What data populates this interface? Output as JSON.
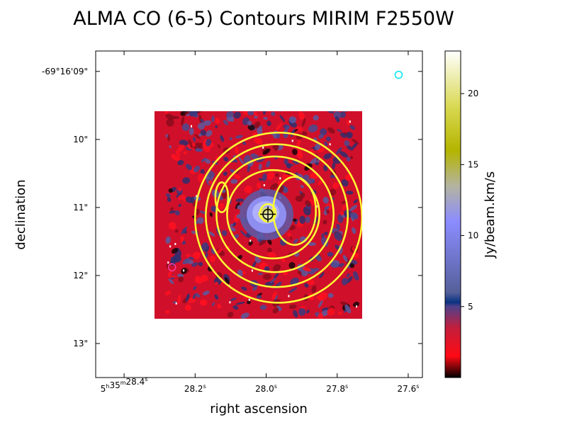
{
  "chart_data": {
    "type": "heatmap",
    "title": "ALMA CO (6-5) Contours MIRIM F2550W",
    "xlabel": "right ascension",
    "ylabel": "declination",
    "x_ticks": [
      {
        "h": "5",
        "m": "35",
        "s": "28.4",
        "value_s": 28.4
      },
      {
        "h": "",
        "m": "",
        "s": "28.2",
        "value_s": 28.2
      },
      {
        "h": "",
        "m": "",
        "s": "28.0",
        "value_s": 28.0
      },
      {
        "h": "",
        "m": "",
        "s": "27.8",
        "value_s": 27.8
      },
      {
        "h": "",
        "m": "",
        "s": "27.6",
        "value_s": 27.6
      }
    ],
    "y_ticks": [
      {
        "label": "-69°16'09\"",
        "value_arcsec": 9
      },
      {
        "label": "10\"",
        "value_arcsec": 10
      },
      {
        "label": "11\"",
        "value_arcsec": 11
      },
      {
        "label": "12\"",
        "value_arcsec": 12
      },
      {
        "label": "13\"",
        "value_arcsec": 13
      }
    ],
    "colorbar": {
      "label": "Jy/beam.km/s",
      "min": 0,
      "max": 23,
      "ticks": [
        {
          "label": "5",
          "value": 5
        },
        {
          "label": "10",
          "value": 10
        },
        {
          "label": "15",
          "value": 15
        },
        {
          "label": "20",
          "value": 20
        }
      ],
      "colors": [
        {
          "v": 0,
          "c": "#000000"
        },
        {
          "v": 1.5,
          "c": "#ff0a14"
        },
        {
          "v": 3.5,
          "c": "#c31e3c"
        },
        {
          "v": 5,
          "c": "#50418a"
        },
        {
          "v": 5.3,
          "c": "#0a3282"
        },
        {
          "v": 6,
          "c": "#55609a"
        },
        {
          "v": 11,
          "c": "#8c8cff"
        },
        {
          "v": 13.5,
          "c": "#b4b4a0"
        },
        {
          "v": 16,
          "c": "#b4b400"
        },
        {
          "v": 19,
          "c": "#d8d850"
        },
        {
          "v": 23,
          "c": "#ffffff"
        }
      ]
    },
    "image_extent": {
      "x_s": [
        28.28,
        27.74
      ],
      "y_arcsec": [
        9.55,
        12.6
      ]
    },
    "axis_range": {
      "x_s": [
        28.48,
        27.56
      ],
      "y_arcsec": [
        8.7,
        13.5
      ]
    },
    "contour_color": "#ffff33",
    "contours": [
      {
        "cx_s": 27.965,
        "cy_arcsec": 11.15,
        "rx_s": 0.235,
        "ry_arcsec": 1.25
      },
      {
        "cx_s": 27.97,
        "cy_arcsec": 11.12,
        "rx_s": 0.2,
        "ry_arcsec": 1.05
      },
      {
        "cx_s": 27.975,
        "cy_arcsec": 11.1,
        "rx_s": 0.165,
        "ry_arcsec": 0.85
      },
      {
        "cx_s": 27.98,
        "cy_arcsec": 11.1,
        "rx_s": 0.13,
        "ry_arcsec": 0.65
      },
      {
        "cx_s": 27.92,
        "cy_arcsec": 11.05,
        "rx_s": 0.06,
        "ry_arcsec": 0.5
      },
      {
        "cx_s": 28.125,
        "cy_arcsec": 10.85,
        "rx_s": 0.018,
        "ry_arcsec": 0.22
      },
      {
        "cx_s": 27.995,
        "cy_arcsec": 11.08,
        "rx_s": 0.022,
        "ry_arcsec": 0.13
      }
    ],
    "source": {
      "x_s": 27.995,
      "y_arcsec": 11.1,
      "marker": "crosshair"
    },
    "markers": [
      {
        "name": "cyan-circle",
        "x_s": 27.627,
        "y_arcsec": 9.05,
        "color": "#00e5ee"
      },
      {
        "name": "magenta-circle",
        "x_s": 28.265,
        "y_arcsec": 11.88,
        "color": "#ff3ca0"
      }
    ]
  }
}
